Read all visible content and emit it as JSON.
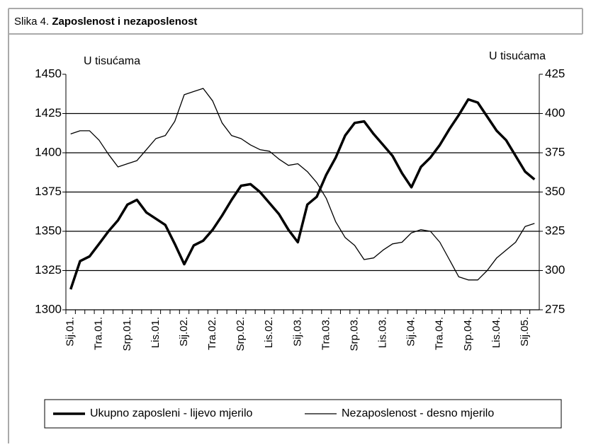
{
  "chart_data": {
    "type": "line",
    "figure_label": "Slika 4.",
    "title": "Zaposlenost i nezaposlenost",
    "y_axis_label": "U tisućama",
    "y2_axis_label": "U tisućama",
    "categories": [
      "Sij.01.",
      null,
      null,
      "Tra.01.",
      null,
      null,
      "Srp.01.",
      null,
      null,
      "Lis.01.",
      null,
      null,
      "Sij.02.",
      null,
      null,
      "Tra.02.",
      null,
      null,
      "Srp.02.",
      null,
      null,
      "Lis.02.",
      null,
      null,
      "Sij.03.",
      null,
      null,
      "Tra.03.",
      null,
      null,
      "Srp.03.",
      null,
      null,
      "Lis.03.",
      null,
      null,
      "Sij.04.",
      null,
      null,
      "Tra.04.",
      null,
      null,
      "Srp.04.",
      null,
      null,
      "Lis.04.",
      null,
      null,
      "Sij.05.",
      null
    ],
    "series": [
      {
        "name": "Ukupno zaposleni - lijevo mjerilo",
        "color": "#000000",
        "width": 3.5,
        "values": [
          1313,
          1331,
          1334,
          1342,
          1350,
          1357,
          1367,
          1370,
          1362,
          1358,
          1354,
          1342,
          1329,
          1341,
          1344,
          1351,
          1360,
          1370,
          1379,
          1380,
          1375,
          1368,
          1361,
          1351,
          1343,
          1367,
          1372,
          1386,
          1397,
          1411,
          1419,
          1420,
          1412,
          1405,
          1398,
          1387,
          1378,
          1391,
          1397,
          1405,
          1415,
          1424,
          1434,
          1432,
          1423,
          1414,
          1408,
          1398,
          1388,
          1383
        ]
      },
      {
        "name": "Nezaposlenost - desno mjerilo",
        "color": "#000000",
        "width": 1.3,
        "axis": "y2",
        "values": [
          387,
          389,
          389,
          383,
          374,
          366,
          368,
          370,
          377,
          384,
          386,
          395,
          412,
          414,
          416,
          408,
          394,
          386,
          384,
          380,
          377,
          376,
          371,
          367,
          368,
          363,
          356,
          346,
          331,
          321,
          316,
          307,
          308,
          313,
          317,
          318,
          324,
          326,
          325,
          318,
          307,
          296,
          294,
          294,
          300,
          308,
          313,
          318,
          328,
          330
        ]
      }
    ],
    "ylim": [
      1300,
      1450
    ],
    "yticks": [
      1300,
      1325,
      1350,
      1375,
      1400,
      1425,
      1450
    ],
    "y2lim": [
      275,
      425
    ],
    "y2ticks": [
      275,
      300,
      325,
      350,
      375,
      400,
      425
    ],
    "grid": true,
    "legend": "bottom"
  }
}
